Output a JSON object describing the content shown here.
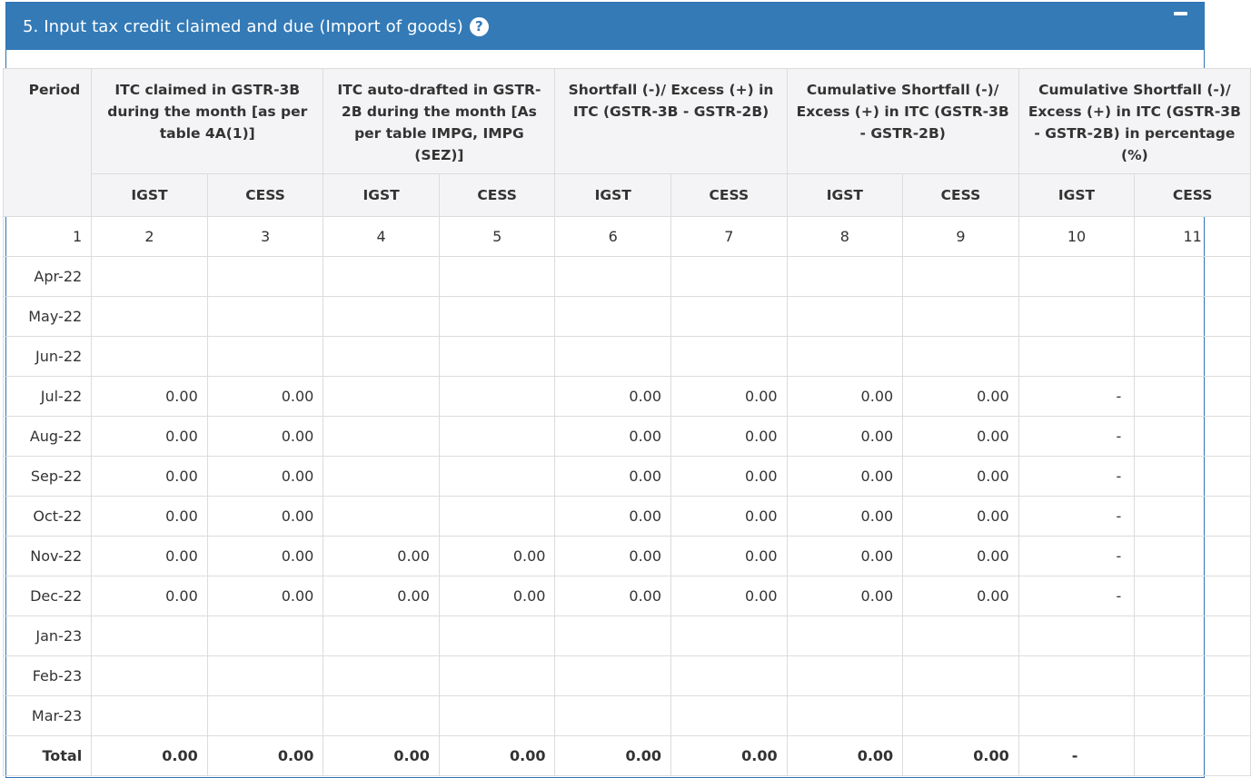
{
  "panel": {
    "title": "5. Input tax credit claimed and due (Import of goods)",
    "help_glyph": "?",
    "collapse_label": "−"
  },
  "table": {
    "period_header": "Period",
    "group_headers": [
      "ITC claimed in GSTR-3B during the month [as per table 4A(1)]",
      "ITC auto-drafted in GSTR-2B during the month [As per table IMPG, IMPG (SEZ)]",
      "Shortfall (-)/ Excess (+) in ITC (GSTR-3B - GSTR-2B)",
      "Cumulative Shortfall (-)/ Excess (+) in ITC (GSTR-3B - GSTR-2B)",
      "Cumulative Shortfall (-)/ Excess (+) in ITC (GSTR-3B - GSTR-2B) in percentage (%)"
    ],
    "sub_headers": [
      "IGST",
      "CESS",
      "IGST",
      "CESS",
      "IGST",
      "CESS",
      "IGST",
      "CESS",
      "IGST",
      "CESS"
    ],
    "column_numbers": [
      "1",
      "2",
      "3",
      "4",
      "5",
      "6",
      "7",
      "8",
      "9",
      "10",
      "11"
    ],
    "rows": [
      {
        "period": "Apr-22",
        "cells": [
          "",
          "",
          "",
          "",
          "",
          "",
          "",
          "",
          "",
          ""
        ]
      },
      {
        "period": "May-22",
        "cells": [
          "",
          "",
          "",
          "",
          "",
          "",
          "",
          "",
          "",
          ""
        ]
      },
      {
        "period": "Jun-22",
        "cells": [
          "",
          "",
          "",
          "",
          "",
          "",
          "",
          "",
          "",
          ""
        ]
      },
      {
        "period": "Jul-22",
        "cells": [
          "0.00",
          "0.00",
          "",
          "",
          "0.00",
          "0.00",
          "0.00",
          "0.00",
          "-",
          ""
        ]
      },
      {
        "period": "Aug-22",
        "cells": [
          "0.00",
          "0.00",
          "",
          "",
          "0.00",
          "0.00",
          "0.00",
          "0.00",
          "-",
          ""
        ]
      },
      {
        "period": "Sep-22",
        "cells": [
          "0.00",
          "0.00",
          "",
          "",
          "0.00",
          "0.00",
          "0.00",
          "0.00",
          "-",
          ""
        ]
      },
      {
        "period": "Oct-22",
        "cells": [
          "0.00",
          "0.00",
          "",
          "",
          "0.00",
          "0.00",
          "0.00",
          "0.00",
          "-",
          ""
        ]
      },
      {
        "period": "Nov-22",
        "cells": [
          "0.00",
          "0.00",
          "0.00",
          "0.00",
          "0.00",
          "0.00",
          "0.00",
          "0.00",
          "-",
          ""
        ]
      },
      {
        "period": "Dec-22",
        "cells": [
          "0.00",
          "0.00",
          "0.00",
          "0.00",
          "0.00",
          "0.00",
          "0.00",
          "0.00",
          "-",
          ""
        ]
      },
      {
        "period": "Jan-23",
        "cells": [
          "",
          "",
          "",
          "",
          "",
          "",
          "",
          "",
          "",
          ""
        ]
      },
      {
        "period": "Feb-23",
        "cells": [
          "",
          "",
          "",
          "",
          "",
          "",
          "",
          "",
          "",
          ""
        ]
      },
      {
        "period": "Mar-23",
        "cells": [
          "",
          "",
          "",
          "",
          "",
          "",
          "",
          "",
          "",
          ""
        ]
      }
    ],
    "total": {
      "period": "Total",
      "cells": [
        "0.00",
        "0.00",
        "0.00",
        "0.00",
        "0.00",
        "0.00",
        "0.00",
        "0.00",
        "-",
        ""
      ]
    }
  }
}
